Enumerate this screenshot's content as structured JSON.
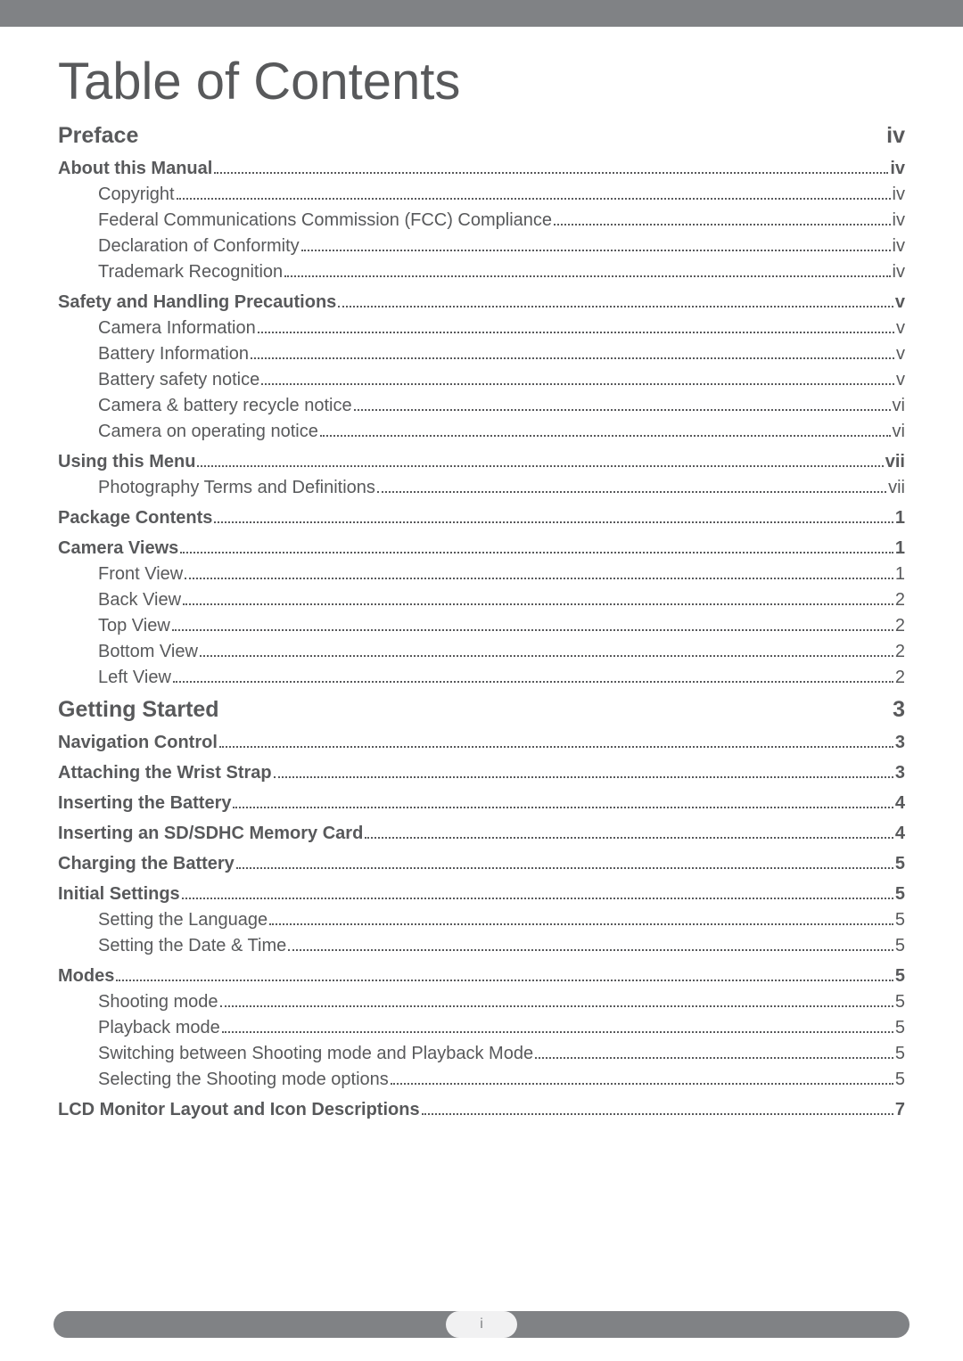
{
  "title": "Table of Contents",
  "footer_page": "i",
  "colors": {
    "text": "#58595b",
    "bar": "#808285",
    "pill_bg": "#f1f1f2",
    "page_bg": "#ffffff"
  },
  "toc": [
    {
      "type": "chapter",
      "label": "Preface",
      "page": "iv"
    },
    {
      "type": "section",
      "label": "About this Manual",
      "page": "iv"
    },
    {
      "type": "sub",
      "label": "Copyright",
      "page": "iv"
    },
    {
      "type": "sub",
      "label": "Federal Communications Commission (FCC) Compliance",
      "page": "iv"
    },
    {
      "type": "sub",
      "label": "Declaration of Conformity",
      "page": "iv"
    },
    {
      "type": "sub",
      "label": "Trademark Recognition",
      "page": "iv"
    },
    {
      "type": "section",
      "label": "Safety and Handling Precautions",
      "page": "v"
    },
    {
      "type": "sub",
      "label": "Camera Information",
      "page": "v"
    },
    {
      "type": "sub",
      "label": "Battery Information",
      "page": "v"
    },
    {
      "type": "sub",
      "label": "Battery safety notice",
      "page": "v"
    },
    {
      "type": "sub",
      "label": "Camera & battery recycle notice",
      "page": "vi"
    },
    {
      "type": "sub",
      "label": "Camera on operating notice",
      "page": "vi"
    },
    {
      "type": "section",
      "label": "Using this Menu",
      "page": "vii"
    },
    {
      "type": "sub",
      "label": "Photography Terms and Definitions",
      "page": "vii"
    },
    {
      "type": "section",
      "label": "Package Contents",
      "page": "1"
    },
    {
      "type": "section",
      "label": "Camera Views",
      "page": "1"
    },
    {
      "type": "sub",
      "label": "Front View",
      "page": "1"
    },
    {
      "type": "sub",
      "label": "Back View",
      "page": "2"
    },
    {
      "type": "sub",
      "label": "Top View",
      "page": "2"
    },
    {
      "type": "sub",
      "label": "Bottom View",
      "page": "2"
    },
    {
      "type": "sub",
      "label": "Left View",
      "page": "2"
    },
    {
      "type": "chapter",
      "label": "Getting Started",
      "page": "3"
    },
    {
      "type": "section",
      "label": "Navigation Control",
      "page": "3"
    },
    {
      "type": "section",
      "label": "Attaching the Wrist Strap",
      "page": "3"
    },
    {
      "type": "section",
      "label": "Inserting the Battery",
      "page": "4"
    },
    {
      "type": "section",
      "label": "Inserting an SD/SDHC Memory Card",
      "page": "4"
    },
    {
      "type": "section",
      "label": "Charging the Battery",
      "page": "5"
    },
    {
      "type": "section",
      "label": "Initial Settings",
      "page": "5"
    },
    {
      "type": "sub",
      "label": "Setting the Language",
      "page": "5"
    },
    {
      "type": "sub",
      "label": "Setting the Date & Time",
      "page": "5"
    },
    {
      "type": "section",
      "label": "Modes",
      "page": "5"
    },
    {
      "type": "sub",
      "label": "Shooting mode",
      "page": "5"
    },
    {
      "type": "sub",
      "label": "Playback mode",
      "page": "5"
    },
    {
      "type": "sub",
      "label": "Switching between Shooting mode and Playback Mode",
      "page": "5"
    },
    {
      "type": "sub",
      "label": "Selecting the Shooting mode options",
      "page": "5"
    },
    {
      "type": "section",
      "label": "LCD Monitor Layout and Icon Descriptions",
      "page": "7"
    }
  ]
}
